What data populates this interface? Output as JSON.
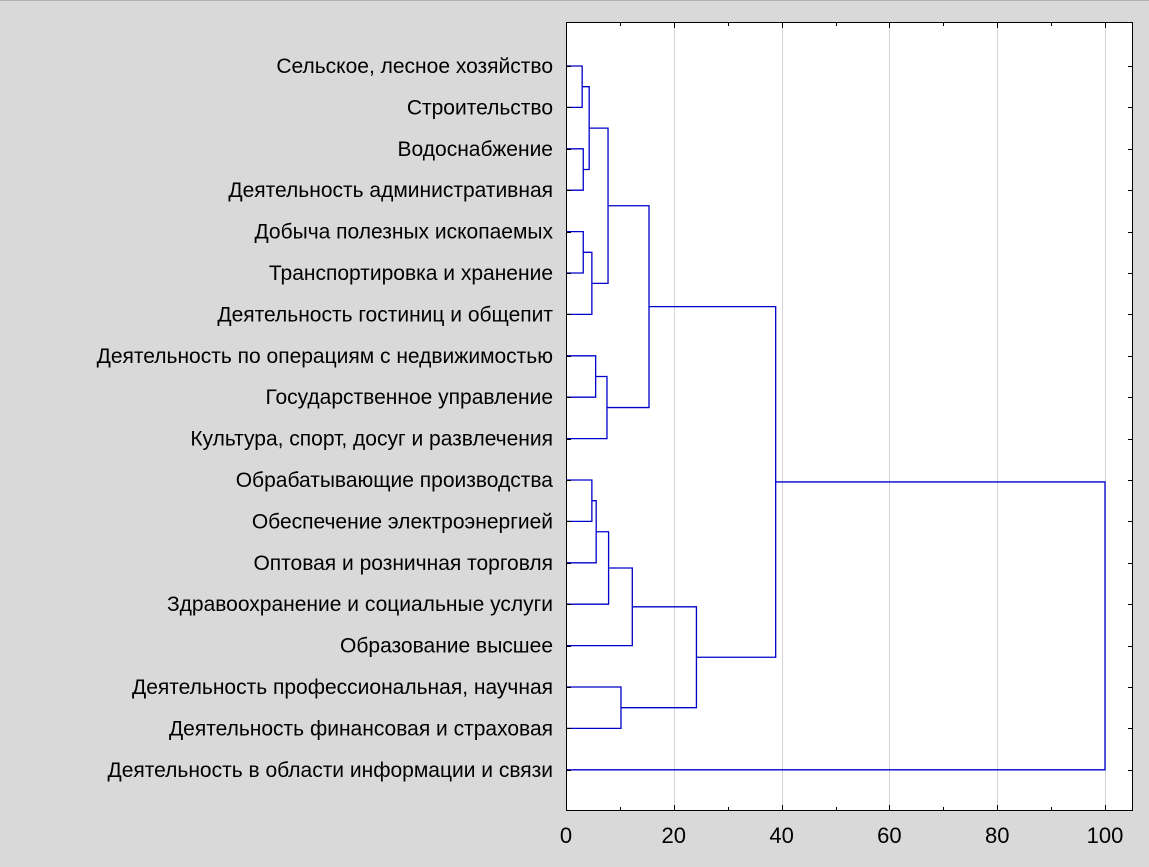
{
  "chart_data": {
    "type": "dendrogram",
    "orientation": "horizontal",
    "title": "",
    "xlabel": "",
    "ylabel": "",
    "xlim": [
      0,
      104
    ],
    "x_ticks": [
      "0",
      "20",
      "40",
      "60",
      "80",
      "100"
    ],
    "x_tick_values": [
      0,
      20,
      40,
      60,
      80,
      100
    ],
    "grid": "vertical",
    "colors": {
      "background": "#d9d9d9",
      "plot_background": "#ffffff",
      "link": "#0000c8",
      "grid": "#d3d3d3",
      "text": "#000000"
    },
    "leaves": [
      "Сельское, лесное хозяйство",
      "Строительство",
      "Водоснабжение",
      "Деятельность административная",
      "Добыча полезных ископаемых",
      "Транспортировка и хранение",
      "Деятельность гостиниц и общепит",
      "Деятельность по операциям с недвижимостью",
      "Государственное управление",
      "Культура, спорт, досуг и развлечения",
      "Обрабатывающие производства",
      "Обеспечение электроэнергией",
      "Оптовая и розничная торговля",
      "Здравоохранение и социальные услуги",
      "Образование высшее",
      "Деятельность профессиональная, научная",
      "Деятельность финансовая и страховая",
      "Деятельность в области информации и связи"
    ],
    "merges": [
      {
        "left": 0,
        "right": 1,
        "height": 3.0
      },
      {
        "left": 2,
        "right": 3,
        "height": 3.2
      },
      {
        "left": 18,
        "right": 19,
        "height": 4.3
      },
      {
        "left": 4,
        "right": 5,
        "height": 3.2
      },
      {
        "left": 21,
        "right": 6,
        "height": 4.8
      },
      {
        "left": 20,
        "right": 22,
        "height": 7.8
      },
      {
        "left": 7,
        "right": 8,
        "height": 5.5
      },
      {
        "left": 24,
        "right": 9,
        "height": 7.6
      },
      {
        "left": 23,
        "right": 25,
        "height": 15.4
      },
      {
        "left": 10,
        "right": 11,
        "height": 4.8
      },
      {
        "left": 27,
        "right": 12,
        "height": 5.6
      },
      {
        "left": 28,
        "right": 13,
        "height": 7.9
      },
      {
        "left": 29,
        "right": 14,
        "height": 12.3
      },
      {
        "left": 15,
        "right": 16,
        "height": 10.2
      },
      {
        "left": 30,
        "right": 31,
        "height": 24.2
      },
      {
        "left": 26,
        "right": 32,
        "height": 38.9
      },
      {
        "left": 33,
        "right": 17,
        "height": 100.0
      }
    ]
  }
}
